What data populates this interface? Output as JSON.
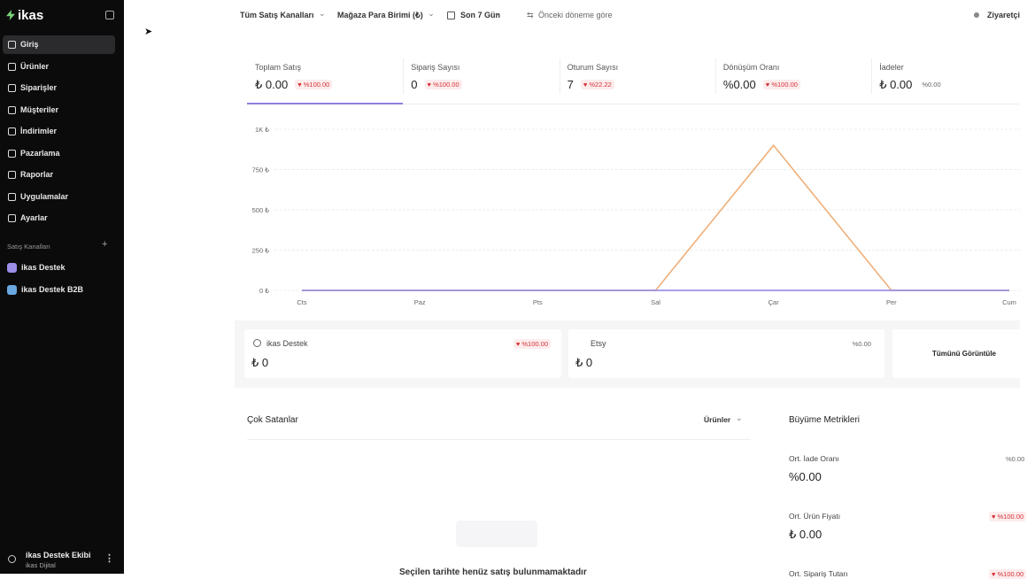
{
  "sidebar": {
    "brand": "ikas",
    "nav": [
      "Giriş",
      "Ürünler",
      "Siparişler",
      "Müşteriler",
      "İndirimler",
      "Pazarlama",
      "Raporlar",
      "Uygulamalar",
      "Ayarlar"
    ],
    "section_title": "Satış Kanalları",
    "channels": [
      "ikas Destek",
      "ikas Destek B2B"
    ],
    "user": {
      "name": "ikas Destek Ekibi",
      "org": "ikas Dijital"
    }
  },
  "topbar": {
    "filters": [
      "Tüm Satış Kanalları",
      "Mağaza Para Birimi (₺)",
      "Son 7 Gün"
    ],
    "compare": "Önceki döneme göre",
    "right": "Ziyaretçi"
  },
  "metrics": [
    {
      "label": "Toplam Satış",
      "value": "₺ 0.00",
      "change": "%100.00",
      "trend": "down"
    },
    {
      "label": "Sipariş Sayısı",
      "value": "0",
      "change": "%100.00",
      "trend": "down"
    },
    {
      "label": "Oturum Sayısı",
      "value": "7",
      "change": "%22.22",
      "trend": "down"
    },
    {
      "label": "Dönüşüm Oranı",
      "value": "%0.00",
      "change": "%100.00",
      "trend": "down"
    },
    {
      "label": "İadeler",
      "value": "₺ 0.00",
      "change": "%0.00",
      "trend": "flat"
    }
  ],
  "chart_data": {
    "type": "line",
    "categories": [
      "Cts",
      "Paz",
      "Pts",
      "Sal",
      "Çar",
      "Per",
      "Cum"
    ],
    "series": [
      {
        "color": "#f0b07a",
        "values": [
          0,
          0,
          0,
          0,
          900,
          0,
          0
        ]
      },
      {
        "color": "#8b80e0",
        "values": [
          0,
          0,
          0,
          0,
          0,
          0,
          0
        ]
      }
    ],
    "ylim": [
      0,
      1000
    ],
    "yticks": [
      {
        "value": 0,
        "label": "0 ₺"
      },
      {
        "value": 250,
        "label": "250 ₺"
      },
      {
        "value": 500,
        "label": "500 ₺"
      },
      {
        "value": 750,
        "label": "750 ₺"
      },
      {
        "value": 1000,
        "label": "1K ₺"
      }
    ],
    "grid": true
  },
  "channel_summary": {
    "cards": [
      {
        "name": "ikas Destek",
        "value": "₺ 0",
        "change": "%100.00",
        "trend": "down"
      },
      {
        "name": "Etsy",
        "value": "₺ 0",
        "change": "%0.00",
        "trend": "flat"
      }
    ],
    "view_all": "Tümünü Görüntüle"
  },
  "best_sellers": {
    "title": "Çok Satanlar",
    "filter": "Ürünler",
    "empty": "Seçilen tarihte henüz satış bulunmamaktadır"
  },
  "growth": {
    "title": "Büyüme Metrikleri",
    "items": [
      {
        "label": "Ort. İade Oranı",
        "value": "%0.00",
        "change": "%0.00",
        "trend": "flat"
      },
      {
        "label": "Ort. Ürün Fiyatı",
        "value": "₺ 0.00",
        "change": "%100.00",
        "trend": "down"
      },
      {
        "label": "Ort. Sipariş Tutarı",
        "change": "%100.00",
        "trend": "down"
      }
    ]
  }
}
